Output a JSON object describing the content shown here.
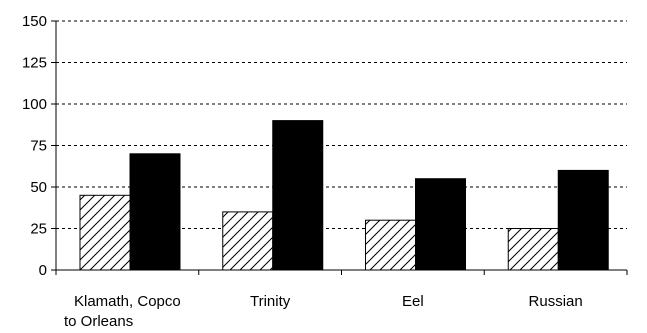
{
  "chart_data": {
    "type": "bar",
    "categories": [
      [
        "Klamath, Copco",
        "to Orleans"
      ],
      [
        "Trinity"
      ],
      [
        "Eel"
      ],
      [
        "Russian"
      ]
    ],
    "series": [
      {
        "values": [
          45,
          35,
          30,
          25
        ],
        "pattern": "hatched",
        "color": "#ffffff"
      },
      {
        "values": [
          70,
          90,
          55,
          60
        ],
        "pattern": "solid",
        "color": "#000000"
      }
    ],
    "ylim": [
      0,
      150
    ],
    "yticks": [
      0,
      25,
      50,
      75,
      100,
      125,
      150
    ],
    "grid": "horizontal-dashed",
    "legend": "none"
  }
}
